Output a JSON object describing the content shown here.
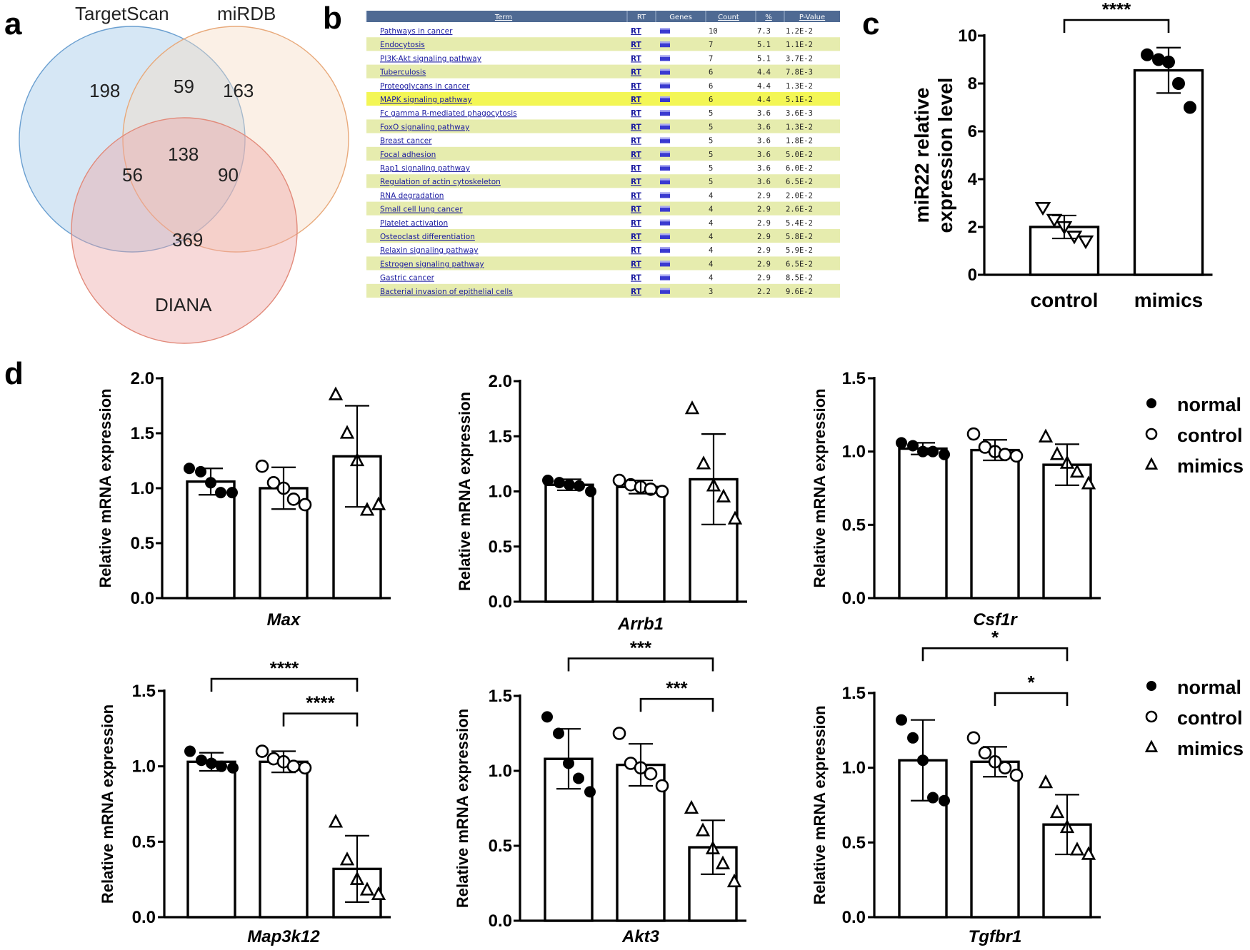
{
  "panel_letters": [
    "a",
    "b",
    "c",
    "d"
  ],
  "venn": {
    "sets": [
      "TargetScan",
      "miRDB",
      "DIANA"
    ],
    "counts": {
      "targetscan_only": "198",
      "mirdb_only": "163",
      "diana_only": "369",
      "targetscan_mirdb": "59",
      "targetscan_diana": "56",
      "mirdb_diana": "90",
      "all_three": "138"
    },
    "colors": {
      "targetscan": "#9ec6e8",
      "mirdb": "#f5dcc4",
      "diana": "#eda5a5"
    }
  },
  "table": {
    "headers": [
      "Term",
      "RT",
      "Genes",
      "Count",
      "%",
      "P-Value"
    ],
    "highlight_row": 5,
    "rows": [
      {
        "term": "Pathways in cancer",
        "rt": "RT",
        "count": "10",
        "pct": "7.3",
        "p": "1.2E-2"
      },
      {
        "term": "Endocytosis",
        "rt": "RT",
        "count": "7",
        "pct": "5.1",
        "p": "1.1E-2"
      },
      {
        "term": "PI3K-Akt signaling pathway",
        "rt": "RT",
        "count": "7",
        "pct": "5.1",
        "p": "3.7E-2"
      },
      {
        "term": "Tuberculosis",
        "rt": "RT",
        "count": "6",
        "pct": "4.4",
        "p": "7.8E-3"
      },
      {
        "term": "Proteoglycans in cancer",
        "rt": "RT",
        "count": "6",
        "pct": "4.4",
        "p": "1.3E-2"
      },
      {
        "term": "MAPK signaling pathway",
        "rt": "RT",
        "count": "6",
        "pct": "4.4",
        "p": "5.1E-2"
      },
      {
        "term": "Fc gamma R-mediated phagocytosis",
        "rt": "RT",
        "count": "5",
        "pct": "3.6",
        "p": "3.6E-3"
      },
      {
        "term": "FoxO signaling pathway",
        "rt": "RT",
        "count": "5",
        "pct": "3.6",
        "p": "1.3E-2"
      },
      {
        "term": "Breast cancer",
        "rt": "RT",
        "count": "5",
        "pct": "3.6",
        "p": "1.8E-2"
      },
      {
        "term": "Focal adhesion",
        "rt": "RT",
        "count": "5",
        "pct": "3.6",
        "p": "5.0E-2"
      },
      {
        "term": "Rap1 signaling pathway",
        "rt": "RT",
        "count": "5",
        "pct": "3.6",
        "p": "6.0E-2"
      },
      {
        "term": "Regulation of actin cytoskeleton",
        "rt": "RT",
        "count": "5",
        "pct": "3.6",
        "p": "6.5E-2"
      },
      {
        "term": "RNA degradation",
        "rt": "RT",
        "count": "4",
        "pct": "2.9",
        "p": "2.0E-2"
      },
      {
        "term": "Small cell lung cancer",
        "rt": "RT",
        "count": "4",
        "pct": "2.9",
        "p": "2.6E-2"
      },
      {
        "term": "Platelet activation",
        "rt": "RT",
        "count": "4",
        "pct": "2.9",
        "p": "5.4E-2"
      },
      {
        "term": "Osteoclast differentiation",
        "rt": "RT",
        "count": "4",
        "pct": "2.9",
        "p": "5.8E-2"
      },
      {
        "term": "Relaxin signaling pathway",
        "rt": "RT",
        "count": "4",
        "pct": "2.9",
        "p": "5.9E-2"
      },
      {
        "term": "Estrogen signaling pathway",
        "rt": "RT",
        "count": "4",
        "pct": "2.9",
        "p": "6.5E-2"
      },
      {
        "term": "Gastric cancer",
        "rt": "RT",
        "count": "4",
        "pct": "2.9",
        "p": "8.5E-2"
      },
      {
        "term": "Bacterial invasion of epithelial cells",
        "rt": "RT",
        "count": "3",
        "pct": "2.2",
        "p": "9.6E-2"
      }
    ]
  },
  "chart_data": [
    {
      "id": "c",
      "type": "bar",
      "ylabel": [
        "miR22 relative",
        "expression level"
      ],
      "categories": [
        "control",
        "mimics"
      ],
      "values": [
        2.0,
        8.55
      ],
      "sd": [
        0.48,
        0.95
      ],
      "points": [
        [
          2.8,
          2.3,
          2.0,
          1.6,
          1.4
        ],
        [
          9.2,
          9.0,
          8.9,
          8.0,
          7.0
        ]
      ],
      "markers": [
        "triangle-down",
        "circle-filled"
      ],
      "ylim": [
        0,
        10
      ],
      "yticks": [
        "0",
        "2",
        "4",
        "6",
        "8",
        "10"
      ],
      "significance": [
        {
          "from": 0,
          "to": 1,
          "label": "****"
        }
      ]
    },
    {
      "id": "max",
      "type": "bar",
      "gene": "Max",
      "ylabel": "Relative mRNA expression",
      "categories": [
        "normal",
        "control",
        "mimics"
      ],
      "values": [
        1.06,
        1.0,
        1.29
      ],
      "sd": [
        0.12,
        0.19,
        0.46
      ],
      "points": [
        [
          1.18,
          1.15,
          1.05,
          0.96,
          0.96
        ],
        [
          1.2,
          1.05,
          1.0,
          0.9,
          0.85
        ],
        [
          1.85,
          1.5,
          1.25,
          0.8,
          0.85
        ]
      ],
      "ylim": [
        0,
        2.0
      ],
      "yticks": [
        "0.0",
        "0.5",
        "1.0",
        "1.5",
        "2.0"
      ],
      "significance": []
    },
    {
      "id": "arrb1",
      "type": "bar",
      "gene": "Arrb1",
      "ylabel": "Relative mRNA expression",
      "categories": [
        "normal",
        "control",
        "mimics"
      ],
      "values": [
        1.06,
        1.04,
        1.11
      ],
      "sd": [
        0.05,
        0.06,
        0.41
      ],
      "points": [
        [
          1.1,
          1.08,
          1.06,
          1.05,
          1.0
        ],
        [
          1.1,
          1.06,
          1.04,
          1.02,
          1.0
        ],
        [
          1.75,
          1.25,
          1.05,
          0.95,
          0.75
        ]
      ],
      "ylim": [
        0,
        2.0
      ],
      "yticks": [
        "0.0",
        "0.5",
        "1.0",
        "1.5",
        "2.0"
      ],
      "significance": []
    },
    {
      "id": "csf1r",
      "type": "bar",
      "gene": "Csf1r",
      "ylabel": "Relative mRNA expression",
      "categories": [
        "normal",
        "control",
        "mimics"
      ],
      "values": [
        1.02,
        1.01,
        0.91
      ],
      "sd": [
        0.04,
        0.07,
        0.14
      ],
      "points": [
        [
          1.06,
          1.04,
          1.0,
          1.0,
          0.98
        ],
        [
          1.12,
          1.03,
          1.0,
          0.98,
          0.97
        ],
        [
          1.1,
          0.98,
          0.92,
          0.86,
          0.78
        ]
      ],
      "ylim": [
        0,
        1.5
      ],
      "yticks": [
        "0.0",
        "0.5",
        "1.0",
        "1.5"
      ],
      "significance": []
    },
    {
      "id": "map3k12",
      "type": "bar",
      "gene": "Map3k12",
      "ylabel": "Relative mRNA expression",
      "categories": [
        "normal",
        "control",
        "mimics"
      ],
      "values": [
        1.03,
        1.03,
        0.32
      ],
      "sd": [
        0.06,
        0.07,
        0.22
      ],
      "points": [
        [
          1.1,
          1.04,
          1.02,
          1.0,
          0.99
        ],
        [
          1.1,
          1.05,
          1.03,
          1.0,
          0.99
        ],
        [
          0.63,
          0.38,
          0.25,
          0.18,
          0.15
        ]
      ],
      "ylim": [
        0,
        1.5
      ],
      "yticks": [
        "0.0",
        "0.5",
        "1.0",
        "1.5"
      ],
      "significance": [
        {
          "from": 0,
          "to": 2,
          "label": "****",
          "level": 1.58
        },
        {
          "from": 1,
          "to": 2,
          "label": "****",
          "level": 1.35
        }
      ]
    },
    {
      "id": "akt3",
      "type": "bar",
      "gene": "Akt3",
      "ylabel": "Relative mRNA expression",
      "categories": [
        "normal",
        "control",
        "mimics"
      ],
      "values": [
        1.08,
        1.04,
        0.49
      ],
      "sd": [
        0.2,
        0.14,
        0.18
      ],
      "points": [
        [
          1.36,
          1.25,
          1.05,
          0.95,
          0.86
        ],
        [
          1.25,
          1.05,
          1.02,
          0.98,
          0.9
        ],
        [
          0.75,
          0.6,
          0.48,
          0.38,
          0.26
        ]
      ],
      "ylim": [
        0,
        1.5
      ],
      "yticks": [
        "0.0",
        "0.5",
        "1.0",
        "1.5"
      ],
      "significance": [
        {
          "from": 0,
          "to": 2,
          "label": "***",
          "level": 1.75
        },
        {
          "from": 1,
          "to": 2,
          "label": "***",
          "level": 1.48
        }
      ]
    },
    {
      "id": "tgfbr1",
      "type": "bar",
      "gene": "Tgfbr1",
      "ylabel": "Relative mRNA expression",
      "categories": [
        "normal",
        "control",
        "mimics"
      ],
      "values": [
        1.05,
        1.04,
        0.62
      ],
      "sd": [
        0.27,
        0.1,
        0.2
      ],
      "points": [
        [
          1.32,
          1.2,
          1.05,
          0.8,
          0.78
        ],
        [
          1.2,
          1.1,
          1.04,
          1.0,
          0.95
        ],
        [
          0.9,
          0.7,
          0.6,
          0.45,
          0.42
        ]
      ],
      "ylim": [
        0,
        1.5
      ],
      "yticks": [
        "0.0",
        "0.5",
        "1.0",
        "1.5"
      ],
      "significance": [
        {
          "from": 0,
          "to": 2,
          "label": "*",
          "level": 1.8
        },
        {
          "from": 1,
          "to": 2,
          "label": "*",
          "level": 1.5
        }
      ]
    }
  ],
  "legend": {
    "entries": [
      {
        "label": "normal",
        "marker": "circle-filled"
      },
      {
        "label": "control",
        "marker": "circle-open"
      },
      {
        "label": "mimics",
        "marker": "triangle-open"
      }
    ]
  }
}
